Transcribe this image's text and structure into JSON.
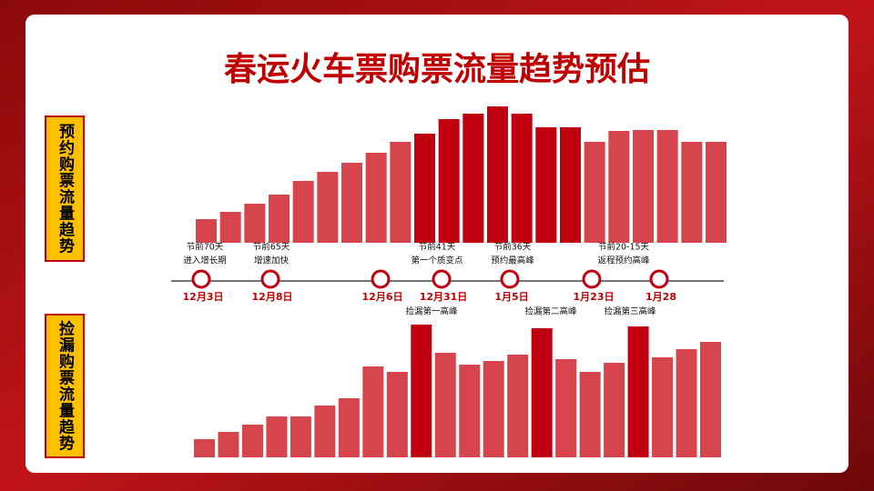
{
  "title": "春运火车票购票流量趋势预估",
  "chart_data": [
    {
      "type": "bar",
      "label": "预约购票流量趋势",
      "values": [
        26,
        34,
        43,
        53,
        68,
        78,
        88,
        99,
        111,
        120,
        136,
        142,
        150,
        142,
        127,
        127,
        111,
        123,
        124,
        124,
        111,
        111
      ],
      "colors": [
        "#d6454d",
        "#d6454d",
        "#d6454d",
        "#d6454d",
        "#d6454d",
        "#d6454d",
        "#d6454d",
        "#d6454d",
        "#d6454d",
        "#c00010",
        "#c00010",
        "#c00010",
        "#c00010",
        "#c00010",
        "#c00010",
        "#c00010",
        "#d6454d",
        "#d6454d",
        "#d6454d",
        "#d6454d",
        "#d6454d",
        "#d6454d"
      ],
      "ylim": [
        0,
        150
      ]
    },
    {
      "type": "bar",
      "label": "捡漏购票流量趋势",
      "values": [
        20,
        28,
        36,
        45,
        45,
        57,
        65,
        100,
        94,
        146,
        115,
        102,
        106,
        113,
        142,
        108,
        94,
        104,
        144,
        110,
        119,
        127
      ],
      "colors": [
        "#d6454d",
        "#d6454d",
        "#d6454d",
        "#d6454d",
        "#d6454d",
        "#d6454d",
        "#d6454d",
        "#d6454d",
        "#d6454d",
        "#c00010",
        "#d6454d",
        "#d6454d",
        "#d6454d",
        "#d6454d",
        "#c00010",
        "#d6454d",
        "#d6454d",
        "#d6454d",
        "#c00010",
        "#d6454d",
        "#d6454d",
        "#d6454d"
      ],
      "ylim": [
        0,
        150
      ]
    }
  ],
  "timeline": [
    {
      "date": "12月3日",
      "note": [
        "节前70天",
        "进入增长期"
      ]
    },
    {
      "date": "12月8日",
      "note": [
        "节前65天",
        "增速加快"
      ]
    },
    {
      "date": "12月6日"
    },
    {
      "date": "12月31日",
      "note": [
        "节前41天",
        "第一个质变点"
      ],
      "catch": "捡漏第一高峰"
    },
    {
      "date": "1月5日",
      "note": [
        "节前36天",
        "预约最高峰"
      ]
    },
    {
      "date": "1月23日",
      "catch": "捡漏第二高峰",
      "note": [
        "节前20-15天",
        "返程预约高峰"
      ]
    },
    {
      "date": "1月28",
      "catch": "捡漏第三高峰"
    }
  ]
}
